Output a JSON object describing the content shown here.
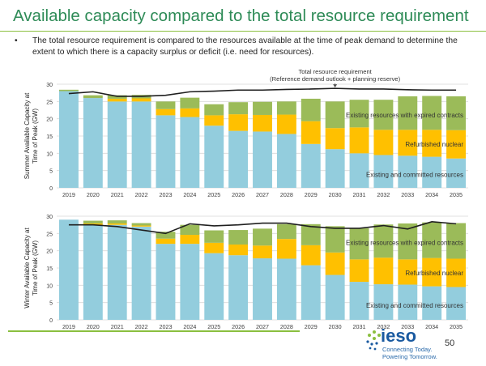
{
  "slide": {
    "title": "Available capacity compared to the total resource requirement",
    "bullet_text": "The total resource requirement is compared to the resources available at the time of peak demand to determine the extent to which there is a capacity surplus or deficit (i.e. need for resources).",
    "page_number": "50",
    "logo_text": "ieso",
    "tagline_1": "Connecting Today.",
    "tagline_2": "Powering Tomorrow."
  },
  "colors": {
    "existing": "#93cddd",
    "refurbished": "#ffc000",
    "expired": "#9bbb59",
    "requirement": "#1f1f1f",
    "title": "#2e8b57"
  },
  "chart_data": [
    {
      "type": "bar",
      "stacked": true,
      "ylabel": "Summer Available Capacity at Time of Peak (GW)",
      "ylim": [
        0,
        30
      ],
      "yticks": [
        0,
        5,
        10,
        15,
        20,
        25,
        30
      ],
      "grid": true,
      "categories": [
        "2019",
        "2020",
        "2021",
        "2022",
        "2023",
        "2024",
        "2025",
        "2026",
        "2027",
        "2028",
        "2029",
        "2030",
        "2031",
        "2032",
        "2033",
        "2034",
        "2035"
      ],
      "series": [
        {
          "name": "Existing and committed resources",
          "values": [
            28.0,
            26.0,
            25.0,
            25.0,
            21.0,
            20.5,
            18.0,
            16.5,
            16.3,
            15.6,
            12.7,
            11.2,
            10.0,
            9.5,
            9.3,
            9.0,
            8.5
          ]
        },
        {
          "name": "Refurbished nuclear",
          "values": [
            0,
            0,
            0.8,
            0.9,
            1.8,
            2.5,
            3.0,
            4.8,
            4.8,
            5.6,
            6.6,
            6.1,
            7.5,
            7.3,
            7.5,
            7.8,
            8.2
          ]
        },
        {
          "name": "Existing resources with expired contracts",
          "values": [
            0.4,
            0.8,
            1.0,
            1.0,
            2.2,
            3.1,
            3.2,
            3.5,
            3.8,
            3.8,
            6.5,
            7.7,
            8.0,
            8.7,
            9.7,
            9.8,
            9.8
          ]
        }
      ],
      "requirement_line": {
        "values": [
          27.3,
          27.8,
          26.5,
          26.5,
          26.8,
          27.8,
          28.0,
          28.3,
          28.3,
          28.5,
          28.6,
          28.8,
          28.6,
          28.6,
          28.4,
          28.3,
          28.3
        ]
      },
      "annotation_1": "Total resource requirement",
      "annotation_2": "(Reference demand outlook + planning reserve)",
      "segment_labels": [
        "Existing resources with expired contracts",
        "Refurbished nuclear",
        "Existing and committed resources"
      ]
    },
    {
      "type": "bar",
      "stacked": true,
      "ylabel": "Winter Available Capacity at Time of Peak (GW)",
      "ylim": [
        0,
        30
      ],
      "yticks": [
        0,
        5,
        10,
        15,
        20,
        25,
        30
      ],
      "grid": true,
      "categories": [
        "2019",
        "2020",
        "2021",
        "2022",
        "2023",
        "2024",
        "2025",
        "2026",
        "2027",
        "2028",
        "2029",
        "2030",
        "2031",
        "2032",
        "2033",
        "2034",
        "2035"
      ],
      "series": [
        {
          "name": "Existing and committed resources",
          "values": [
            29.0,
            27.5,
            27.5,
            27.0,
            22.0,
            22.0,
            19.3,
            18.7,
            17.8,
            17.7,
            15.8,
            13.0,
            11.0,
            10.3,
            10.2,
            9.7,
            9.5
          ]
        },
        {
          "name": "Refurbished nuclear",
          "values": [
            0,
            0.4,
            0.4,
            0.3,
            1.5,
            2.6,
            3.0,
            3.1,
            3.7,
            5.7,
            5.8,
            6.5,
            6.5,
            7.7,
            7.3,
            8.2,
            8.2
          ]
        },
        {
          "name": "Existing resources with expired contracts",
          "values": [
            0,
            0.8,
            0.9,
            0.7,
            2.0,
            2.9,
            3.6,
            4.2,
            4.9,
            4.3,
            6.1,
            7.6,
            9.0,
            9.6,
            10.4,
            10.3,
            10.3
          ]
        }
      ],
      "requirement_line": {
        "values": [
          27.5,
          27.5,
          27.0,
          26.0,
          25.0,
          27.8,
          27.2,
          27.5,
          28.0,
          28.0,
          27.0,
          26.5,
          26.5,
          27.3,
          26.3,
          28.4,
          27.8
        ]
      },
      "segment_labels": [
        "Existing resources with expired contracts",
        "Refurbished nuclear",
        "Existing and committed resources"
      ]
    }
  ]
}
